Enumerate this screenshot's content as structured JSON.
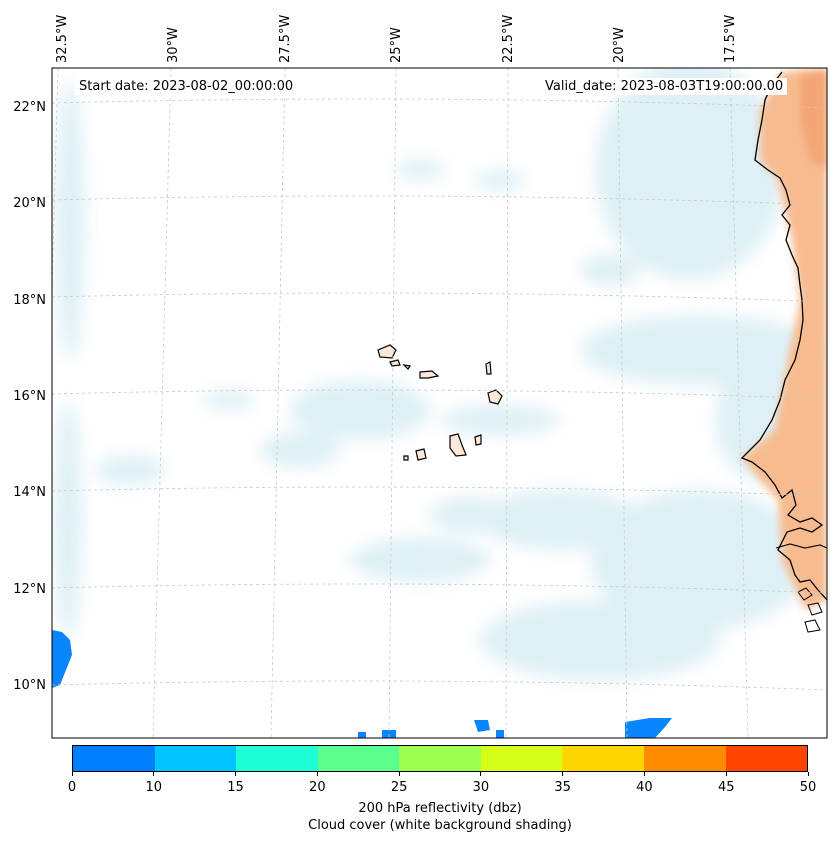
{
  "map": {
    "projection": "Lambert conformal",
    "region": "Cabo Verde and West African coast",
    "start_date_text": "Start date: 2023-08-02_00:00:00",
    "valid_date_text": "Valid_date: 2023-08-03T19:00:00.00",
    "longitude_labels": [
      "32.5°W",
      "30°W",
      "27.5°W",
      "25°W",
      "22.5°W",
      "20°W",
      "17.5°W"
    ],
    "latitude_labels": [
      "22°N",
      "20°N",
      "18°N",
      "16°N",
      "14°N",
      "12°N",
      "10°N"
    ],
    "features": {
      "cloud_cover": "light blue translucent shading",
      "land_fill": "orange reflectivity shading over West Africa",
      "islands": "Cabo Verde archipelago outlines",
      "precip_cells": "blue reflectivity cells near 0-10 dbz"
    }
  },
  "colorbar": {
    "ticks": [
      "0",
      "10",
      "15",
      "20",
      "25",
      "30",
      "35",
      "40",
      "45",
      "50"
    ],
    "colors": [
      "#0080ff",
      "#00c4ff",
      "#1effd8",
      "#5aff8e",
      "#9cff50",
      "#d6ff1a",
      "#ffd500",
      "#ff8c00",
      "#ff4500"
    ],
    "label_line1": "200 hPa reflectivity (dbz)",
    "label_line2": "Cloud cover (white background shading)"
  }
}
